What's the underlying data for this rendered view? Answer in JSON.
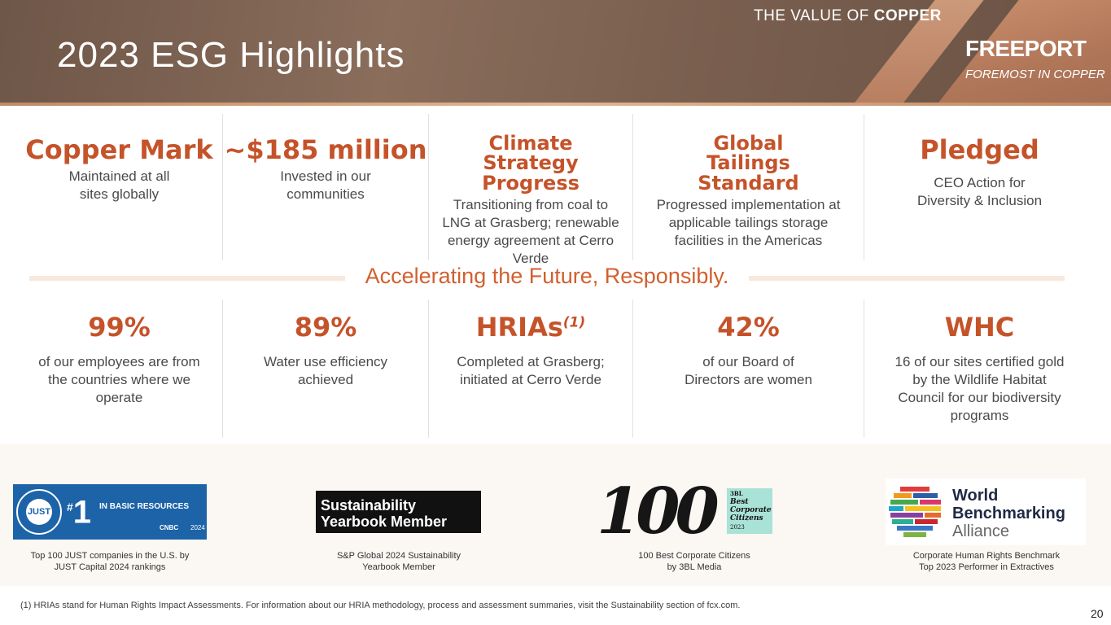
{
  "header": {
    "title": "2023 ESG Highlights",
    "value_prefix": "THE VALUE OF ",
    "value_bold": "COPPER",
    "brand": "FREEPORT",
    "brand_tagline": "FOREMOST IN COPPER"
  },
  "highlights_top": [
    {
      "headline": "Copper Mark",
      "description": "Maintained at all sites globally"
    },
    {
      "headline": "~$185 million",
      "description": "Invested in our communities"
    },
    {
      "headline": "Climate Strategy Progress",
      "description": "Transitioning from coal to LNG at Grasberg; renewable energy agreement at Cerro Verde"
    },
    {
      "headline": "Global Tailings Standard",
      "description": "Progressed implementation at applicable tailings storage facilities in the Americas"
    },
    {
      "headline": "Pledged",
      "description": "CEO Action for Diversity & Inclusion"
    }
  ],
  "tagline": "Accelerating the Future, Responsibly.",
  "highlights_bottom": [
    {
      "headline": "99%",
      "description": "of our employees are from the countries where we operate"
    },
    {
      "headline": "89%",
      "description": "Water use efficiency achieved"
    },
    {
      "headline": "HRIAs",
      "note": "(1)",
      "description": "Completed at Grasberg; initiated at Cerro Verde"
    },
    {
      "headline": "42%",
      "description": "of our Board of Directors are women"
    },
    {
      "headline": "WHC",
      "description": "16 of our sites certified gold by the Wildlife Habitat Council for our biodiversity programs"
    }
  ],
  "awards": [
    {
      "caption_line1": "Top 100 JUST companies in the U.S. by",
      "caption_line2": "JUST Capital 2024 rankings",
      "logo_rank": "1",
      "logo_rank_sign": "#",
      "logo_text": "IN BASIC RESOURCES",
      "logo_seal": "JUST",
      "logo_cnbc": "CNBC",
      "logo_year": "2024"
    },
    {
      "caption_line1": "S&P Global 2024 Sustainability",
      "caption_line2": "Yearbook Member",
      "logo_line1": "Sustainability",
      "logo_line2": "Yearbook Member"
    },
    {
      "caption_line1": "100 Best Corporate Citizens",
      "caption_line2": "by 3BL Media",
      "logo_number": "100",
      "logo_line1": "Best",
      "logo_line2": "Corporate",
      "logo_line3": "Citizens",
      "logo_year": "2023",
      "logo_3bl": "3BL"
    },
    {
      "caption_line1": "Corporate Human Rights Benchmark",
      "caption_line2": "Top 2023 Performer in Extractives",
      "logo_line1": "World",
      "logo_line2": "Benchmarking",
      "logo_line3": "Alliance"
    }
  ],
  "footnote": "(1) HRIAs stand for Human Rights Impact Assessments. For information about our HRIA methodology, process and assessment summaries, visit the Sustainability section of fcx.com.",
  "page_number": "20",
  "colors": {
    "accent": "#c5532a",
    "tagline": "#d1602f",
    "header_bg": "#7b6050",
    "copper": "#c48a68",
    "just_blue": "#1d63a8"
  }
}
